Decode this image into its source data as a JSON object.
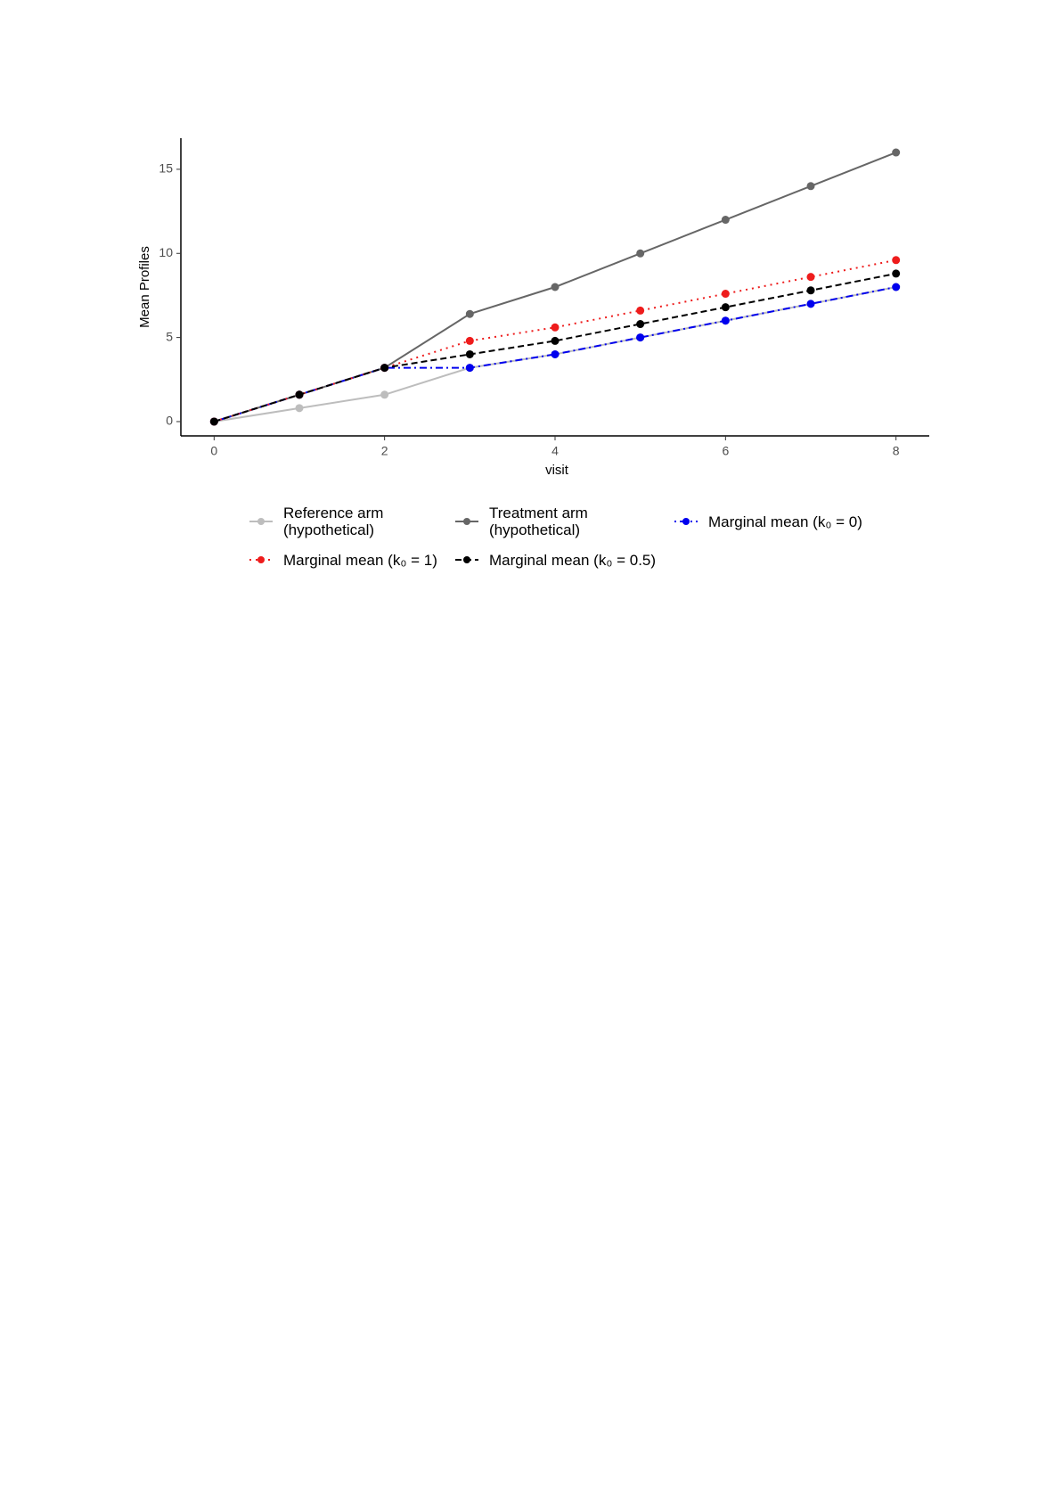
{
  "chart_data": {
    "type": "line",
    "x": [
      0,
      1,
      2,
      3,
      4,
      5,
      6,
      7,
      8
    ],
    "x_label": "visit",
    "y_label": "Mean Profiles",
    "xlim": [
      -0.39,
      8.39
    ],
    "xticks": [
      0,
      2,
      4,
      6,
      8
    ],
    "ylim": [
      -0.85,
      16.85
    ],
    "yticks": [
      0,
      5,
      10,
      15
    ],
    "grid": false,
    "legend": "bottom",
    "series": [
      {
        "name": "Reference arm (hypothetical)",
        "color": "#bdbdbd",
        "linestyle": "solid",
        "values": [
          0,
          0.8,
          1.6,
          3.2,
          4,
          5,
          6,
          7,
          8
        ]
      },
      {
        "name": "Treatment arm (hypothetical)",
        "color": "#666666",
        "linestyle": "solid",
        "values": [
          0,
          1.6,
          3.2,
          6.4,
          8,
          10,
          12,
          14,
          16
        ]
      },
      {
        "name": "Marginal mean (k₀ = 0)",
        "color": "#0000ee",
        "linestyle": "dotdash",
        "values": [
          0,
          1.6,
          3.2,
          3.2,
          4.0,
          5.0,
          6.0,
          7.0,
          8.0
        ]
      },
      {
        "name": "Marginal mean (k₀ = 1)",
        "color": "#ee1c1c",
        "linestyle": "dotted",
        "values": [
          0,
          1.6,
          3.2,
          4.8,
          5.6,
          6.6,
          7.6,
          8.6,
          9.6
        ]
      },
      {
        "name": "Marginal mean (k₀ = 0.5)",
        "color": "#000000",
        "linestyle": "dashed",
        "values": [
          0,
          1.6,
          3.2,
          4.0,
          4.8,
          5.8,
          6.8,
          7.8,
          8.8
        ]
      }
    ]
  }
}
